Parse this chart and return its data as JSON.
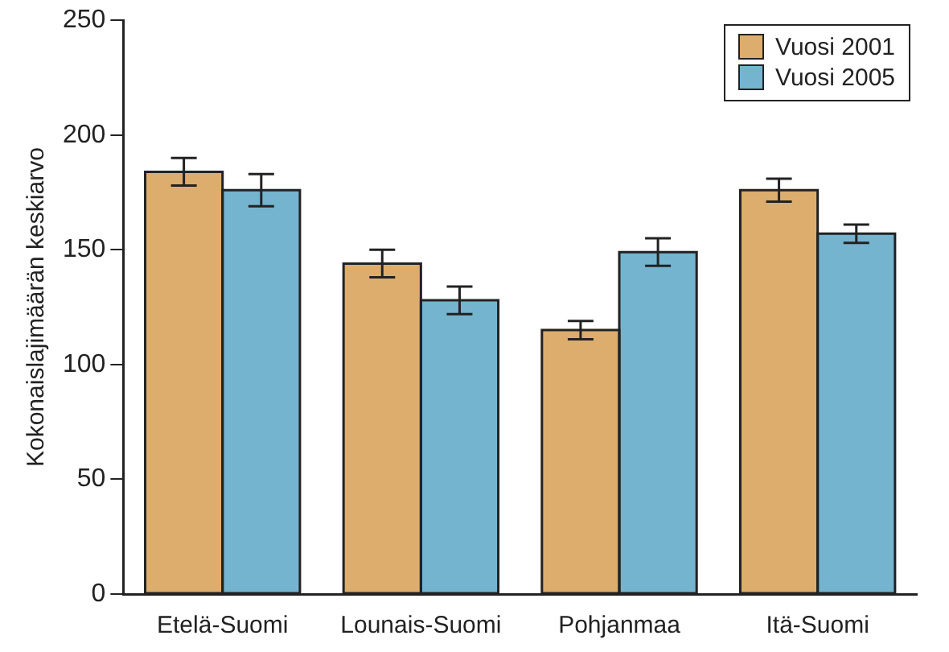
{
  "chart_data": {
    "type": "bar",
    "ylabel": "Kokonaislajimäärän keskiarvo",
    "categories": [
      "Etelä-Suomi",
      "Lounais-Suomi",
      "Pohjanmaa",
      "Itä-Suomi"
    ],
    "series": [
      {
        "name": "Vuosi 2001",
        "color": "#ddad6d",
        "values": [
          184,
          144,
          115,
          176
        ],
        "errors": [
          6,
          6,
          4,
          5
        ]
      },
      {
        "name": "Vuosi 2005",
        "color": "#75b4cf",
        "values": [
          176,
          128,
          149,
          157
        ],
        "errors": [
          7,
          6,
          6,
          4
        ]
      }
    ],
    "ylim": [
      0,
      250
    ],
    "yticks": [
      0,
      50,
      100,
      150,
      200,
      250
    ],
    "grid": false,
    "legend": "top right"
  }
}
